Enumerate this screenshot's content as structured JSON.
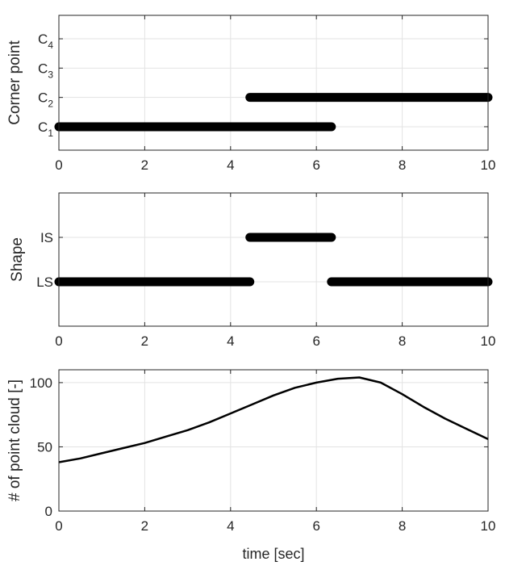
{
  "chart_data": [
    {
      "type": "scatter",
      "xlim": [
        0,
        10
      ],
      "xticks": [
        "0",
        "2",
        "4",
        "6",
        "8",
        "10"
      ],
      "ylabel": "Corner point",
      "yticks": [
        {
          "base": "C",
          "sub": "1",
          "value": 1
        },
        {
          "base": "C",
          "sub": "2",
          "value": 2
        },
        {
          "base": "C",
          "sub": "3",
          "value": 3
        },
        {
          "base": "C",
          "sub": "4",
          "value": 4
        }
      ],
      "ylim": [
        0.2,
        4.8
      ],
      "grid": true,
      "marker_color": "#000000",
      "series": [
        {
          "x_start": 0.0,
          "x_end": 6.35,
          "y": 1
        },
        {
          "x_start": 4.45,
          "x_end": 10.0,
          "y": 2
        }
      ]
    },
    {
      "type": "scatter",
      "xlim": [
        0,
        10
      ],
      "xticks": [
        "0",
        "2",
        "4",
        "6",
        "8",
        "10"
      ],
      "ylabel": "Shape",
      "yticks": [
        {
          "base": "LS",
          "value": 1
        },
        {
          "base": "IS",
          "value": 2
        }
      ],
      "ylim": [
        0,
        3
      ],
      "grid": true,
      "marker_color": "#000000",
      "series": [
        {
          "x_start": 0.0,
          "x_end": 4.45,
          "y": 1
        },
        {
          "x_start": 4.45,
          "x_end": 6.35,
          "y": 2
        },
        {
          "x_start": 6.35,
          "x_end": 10.0,
          "y": 1
        }
      ]
    },
    {
      "type": "line",
      "xlim": [
        0,
        10
      ],
      "xticks": [
        "0",
        "2",
        "4",
        "6",
        "8",
        "10"
      ],
      "xlabel": "time [sec]",
      "ylabel": "# of point cloud [-]",
      "ylim": [
        0,
        110
      ],
      "yticks": [
        "0",
        "50",
        "100"
      ],
      "ytick_values": [
        0,
        50,
        100
      ],
      "grid": true,
      "line_color": "#000000",
      "x": [
        0,
        0.5,
        1,
        1.5,
        2,
        2.5,
        3,
        3.5,
        4,
        4.5,
        5,
        5.5,
        6,
        6.5,
        7,
        7.5,
        8,
        8.5,
        9,
        9.5,
        10
      ],
      "y": [
        38,
        41,
        45,
        49,
        53,
        58,
        63,
        69,
        76,
        83,
        90,
        96,
        100,
        103,
        104,
        100,
        91,
        81,
        72,
        64,
        56
      ]
    }
  ]
}
